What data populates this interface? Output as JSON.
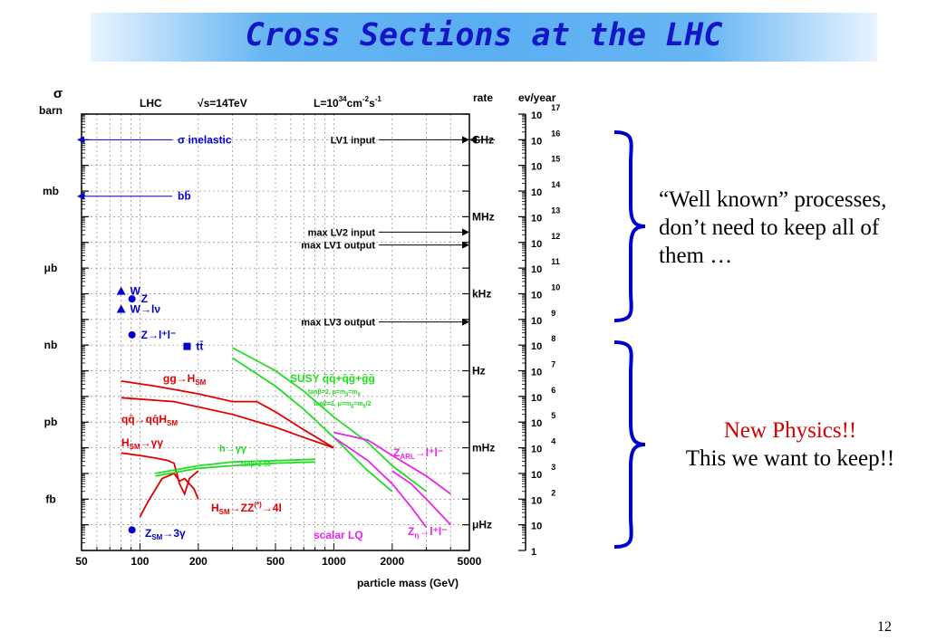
{
  "slide": {
    "title": "Cross Sections at the LHC",
    "note_top": "“Well known” processes, don’t need to keep all of them …",
    "note_bottom_red": "New Physics!!",
    "note_bottom_black": "This we want to keep!!",
    "slide_number": "12"
  },
  "colors": {
    "title": "#1515c8",
    "title_bar": "#5aaef2",
    "blue": "#0000cc",
    "red": "#e00000",
    "green": "#22dd22",
    "magenta": "#ee22ee",
    "new_physics": "#d40000"
  },
  "chart_data": {
    "type": "line",
    "header": {
      "sigma": "σ",
      "barn": "barn",
      "lhc": "LHC",
      "energy": "√s=14TeV",
      "lumi_base": "L=10",
      "lumi_exp1": "34",
      "lumi_mid": "cm",
      "lumi_exp2": "-2",
      "lumi_s": "s",
      "lumi_exp3": "-1",
      "rate": "rate",
      "ev_year": "ev/year"
    },
    "xlabel": "particle mass (GeV)",
    "x_log": true,
    "xlim": [
      50,
      5000
    ],
    "x_ticks": [
      "50",
      "100",
      "200",
      "500",
      "1000",
      "2000",
      "5000"
    ],
    "x_tick_values": [
      50,
      100,
      200,
      500,
      1000,
      2000,
      5000
    ],
    "y_log": true,
    "ylim_decades": 17,
    "left_axis_labels": [
      {
        "label": "mb",
        "decade": 14
      },
      {
        "label": "μb",
        "decade": 11
      },
      {
        "label": "nb",
        "decade": 8
      },
      {
        "label": "pb",
        "decade": 5
      },
      {
        "label": "fb",
        "decade": 2
      }
    ],
    "rate_labels": [
      {
        "label": "GHz",
        "decade": 16
      },
      {
        "label": "MHz",
        "decade": 13
      },
      {
        "label": "kHz",
        "decade": 10
      },
      {
        "label": "Hz",
        "decade": 7
      },
      {
        "label": "mHz",
        "decade": 4
      },
      {
        "label": "μHz",
        "decade": 1
      }
    ],
    "ev_year_ticks": [
      {
        "base": "10",
        "exp": "17"
      },
      {
        "base": "10",
        "exp": "16"
      },
      {
        "base": "10",
        "exp": "15"
      },
      {
        "base": "10",
        "exp": "14"
      },
      {
        "base": "10",
        "exp": "13"
      },
      {
        "base": "10",
        "exp": "12"
      },
      {
        "base": "10",
        "exp": "11"
      },
      {
        "base": "10",
        "exp": "10"
      },
      {
        "base": "10",
        "exp": "9"
      },
      {
        "base": "10",
        "exp": "8"
      },
      {
        "base": "10",
        "exp": "7"
      },
      {
        "base": "10",
        "exp": "6"
      },
      {
        "base": "10",
        "exp": "5"
      },
      {
        "base": "10",
        "exp": "4"
      },
      {
        "base": "10",
        "exp": "3"
      },
      {
        "base": "10",
        "exp": "2"
      },
      {
        "base": "10",
        "exp": ""
      },
      {
        "base": "1",
        "exp": ""
      }
    ],
    "trigger_lines": [
      {
        "label": "LV1 input",
        "decade": 16,
        "both_sides": true
      },
      {
        "label": "max LV2 input",
        "decade": 12.4,
        "both_sides": false
      },
      {
        "label": "max LV1 output",
        "decade": 11.9,
        "both_sides": false
      },
      {
        "label": "max LV3 output",
        "decade": 8.9,
        "both_sides": false
      }
    ],
    "reference_arrows": [
      {
        "label": "σ inelastic",
        "decade": 16
      },
      {
        "label": "bb̄",
        "decade": 13.8
      }
    ],
    "markers": [
      {
        "label": "W",
        "shape": "triangle",
        "x": 80,
        "decade": 10.1
      },
      {
        "label": "Z",
        "shape": "circle",
        "x": 91,
        "decade": 9.8
      },
      {
        "label": "W→lν",
        "shape": "triangle",
        "x": 80,
        "decade": 9.4
      },
      {
        "label": "Z→l⁺l⁻",
        "shape": "circle",
        "x": 91,
        "decade": 8.4
      },
      {
        "label": "tt̄",
        "shape": "square",
        "x": 175,
        "decade": 7.95
      },
      {
        "label": "Z_SM→3γ",
        "shape": "circle",
        "x": 91,
        "decade": 0.8
      }
    ],
    "series": [
      {
        "name": "gg→H_SM",
        "color": "red",
        "x": [
          80,
          120,
          200,
          300,
          400,
          500,
          700,
          1000
        ],
        "y": [
          6.6,
          6.4,
          6.1,
          5.8,
          5.8,
          5.4,
          4.7,
          4.0
        ]
      },
      {
        "name": "qq̄→qq̄H_SM",
        "color": "red",
        "x": [
          80,
          150,
          300,
          500,
          700,
          1000
        ],
        "y": [
          5.95,
          5.8,
          5.3,
          4.8,
          4.4,
          4.0
        ]
      },
      {
        "name": "H_SM→γγ",
        "color": "red",
        "x": [
          80,
          100,
          120,
          140,
          150,
          160,
          170,
          180,
          200
        ],
        "y": [
          3.8,
          3.7,
          3.6,
          3.5,
          3.4,
          2.6,
          2.2,
          2.8,
          3.1
        ]
      },
      {
        "name": "H_SM→ZZ(*)→4l",
        "color": "red",
        "x": [
          100,
          110,
          130,
          150,
          160,
          170,
          190,
          200
        ],
        "y": [
          1.3,
          1.9,
          2.8,
          3.0,
          2.7,
          2.8,
          2.4,
          2.0
        ]
      },
      {
        "name": "h→γγ",
        "color": "green",
        "x": [
          120,
          200,
          300,
          500,
          800
        ],
        "y": [
          2.9,
          3.2,
          3.3,
          3.4,
          3.45
        ]
      },
      {
        "name": "tanβ=2-50",
        "color": "green",
        "x": [
          120,
          200,
          300,
          500,
          800
        ],
        "y": [
          3.0,
          3.3,
          3.45,
          3.5,
          3.55
        ]
      },
      {
        "name": "SUSY q̃q̃+q̃g̃+g̃g̃ (tanβ=2, μ=m_g̃=m_q̃)",
        "color": "green",
        "x": [
          300,
          500,
          700,
          1000,
          1500,
          2000,
          3000
        ],
        "y": [
          7.9,
          7.0,
          6.2,
          5.2,
          4.2,
          3.3,
          2.3
        ]
      },
      {
        "name": "SUSY q̃q̃+q̃g̃+g̃g̃ (tanβ=2, μ=m_g̃=m_q̃/2)",
        "color": "green",
        "x": [
          300,
          500,
          700,
          1000,
          1500,
          2000
        ],
        "y": [
          7.5,
          6.4,
          5.5,
          4.4,
          3.1,
          2.3
        ]
      },
      {
        "name": "Z_ARL→l⁺l⁻",
        "color": "magenta",
        "x": [
          1000,
          1500,
          2000,
          3000,
          4000
        ],
        "y": [
          4.6,
          4.3,
          3.7,
          2.9,
          2.2
        ]
      },
      {
        "name": "scalar LQ",
        "color": "magenta",
        "x": [
          1000,
          1500,
          2000,
          2500,
          3000
        ],
        "y": [
          4.4,
          3.5,
          2.6,
          1.7,
          0.9
        ]
      },
      {
        "name": "Z_η→l⁺l⁻",
        "color": "magenta",
        "x": [
          2000,
          2500,
          3000,
          4000
        ],
        "y": [
          3.1,
          2.6,
          2.0,
          1.0
        ]
      }
    ],
    "annotations": {
      "gg_H": "gg→H",
      "gg_H_sub": "SM",
      "qq_H": "qq̄→qq̄H",
      "qq_H_sub": "SM",
      "H_gg": "H",
      "H_gg_sub": "SM",
      "H_gg_tail": "→γγ",
      "h_gg": "h→γγ",
      "tanb": "tanβ=2-50",
      "H_ZZ": "H",
      "H_ZZ_sub": "SM",
      "H_ZZ_tail": "→ZZ",
      "H_ZZ_sup": "(*)",
      "H_ZZ_end": "→4l",
      "susy": "SUSY q̃q̃+q̃g̃+g̃g̃",
      "susy_1": "tanβ=2, μ=m",
      "susy_1b": "g̃",
      "susy_1c": "=m",
      "susy_1d": "q̃",
      "susy_2": "tanβ=2, μ=m",
      "susy_2b": "g̃",
      "susy_2c": "=m",
      "susy_2d": "q̃",
      "susy_2e": "/2",
      "zarl": "Z",
      "zarl_sub": "ARL",
      "zarl_tail": "→l⁺l⁻",
      "lq": "scalar LQ",
      "zeta": "Z",
      "zeta_sub": "η",
      "zeta_tail": "→l⁺l⁻",
      "z3g": "Z",
      "z3g_sub": "SM",
      "z3g_tail": "→3γ"
    }
  }
}
